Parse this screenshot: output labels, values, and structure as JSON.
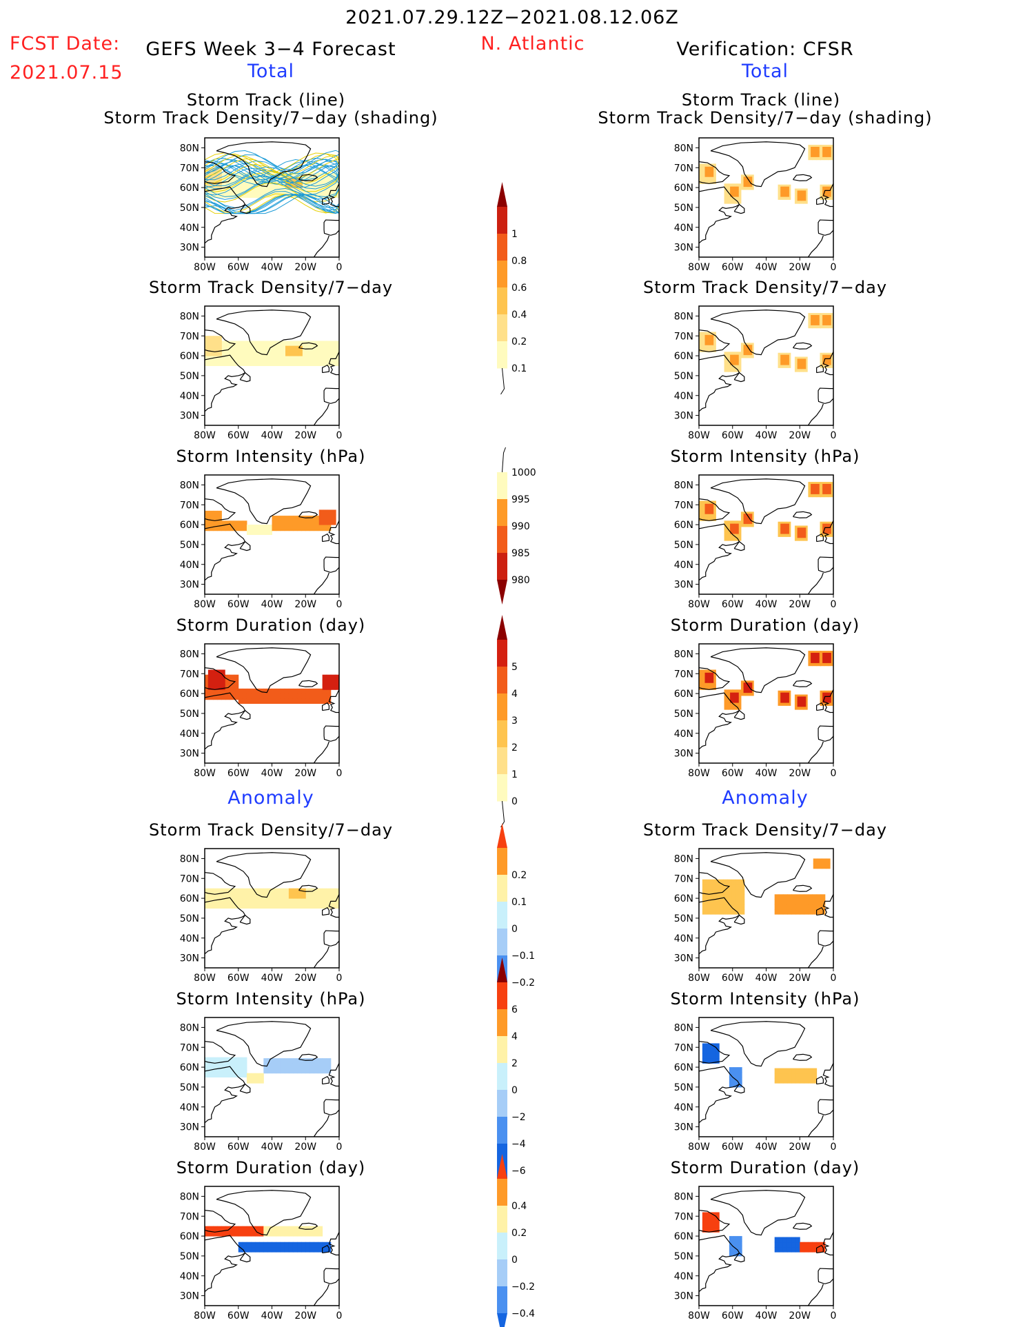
{
  "header": {
    "date_range": "2021.07.29.12Z−2021.08.12.06Z",
    "fcst_label": "FCST Date:",
    "fcst_date": "2021.07.15",
    "left_title": "GEFS Week 3−4 Forecast",
    "region": "N. Atlantic",
    "right_title": "Verification: CFSR",
    "total_label": "Total",
    "anomaly_label": "Anomaly"
  },
  "axes": {
    "lat_ticks": [
      "80N",
      "70N",
      "60N",
      "50N",
      "40N",
      "30N"
    ],
    "lon_ticks": [
      "80W",
      "60W",
      "40W",
      "20W",
      "0"
    ]
  },
  "panels": {
    "track_title_line1": "Storm Track (line)",
    "track_title_line2": "Storm Track Density/7−day (shading)",
    "density": "Storm Track Density/7−day",
    "intensity": "Storm Intensity (hPa)",
    "duration": "Storm Duration (day)"
  },
  "colorbars": {
    "density_total": [
      "1",
      "0.8",
      "0.6",
      "0.4",
      "0.2",
      "0.1"
    ],
    "intensity_total": [
      "1000",
      "995",
      "990",
      "985",
      "980"
    ],
    "duration_total": [
      "5",
      "4",
      "3",
      "2",
      "1",
      "0"
    ],
    "density_anom": [
      "0.2",
      "0.1",
      "0",
      "−0.1",
      "−0.2"
    ],
    "intensity_anom": [
      "6",
      "4",
      "2",
      "0",
      "−2",
      "−4",
      "−6"
    ],
    "duration_anom": [
      "0.4",
      "0.2",
      "0",
      "−0.2",
      "−0.4"
    ]
  },
  "colors": {
    "title_red": "#ff2020",
    "title_blue": "#1f3cff",
    "track_line": "#1a9ad6",
    "track_line2": "#e8d000"
  },
  "chart_data": [
    {
      "type": "heatmap",
      "title": "Storm Track Density/7-day (shading)",
      "source": "GEFS",
      "lon_range": [
        -80,
        0
      ],
      "lat_range": [
        25,
        85
      ],
      "scale": [
        0.1,
        0.2,
        0.4,
        0.6,
        0.8,
        1
      ],
      "note": "storm track lines overlaid"
    },
    {
      "type": "heatmap",
      "title": "Storm Track Density/7-day",
      "source": "CFSR",
      "lon_range": [
        -80,
        0
      ],
      "lat_range": [
        25,
        85
      ]
    },
    {
      "type": "heatmap",
      "title": "Storm Intensity (hPa)",
      "scale": [
        980,
        985,
        990,
        995,
        1000
      ]
    },
    {
      "type": "heatmap",
      "title": "Storm Duration (day)",
      "scale": [
        0,
        1,
        2,
        3,
        4,
        5
      ]
    },
    {
      "type": "heatmap",
      "title": "Anomaly Storm Track Density/7-day",
      "scale": [
        -0.2,
        -0.1,
        0,
        0.1,
        0.2
      ]
    },
    {
      "type": "heatmap",
      "title": "Anomaly Storm Intensity (hPa)",
      "scale": [
        -6,
        -4,
        -2,
        0,
        2,
        4,
        6
      ]
    },
    {
      "type": "heatmap",
      "title": "Anomaly Storm Duration (day)",
      "scale": [
        -0.4,
        -0.2,
        0,
        0.2,
        0.4
      ]
    }
  ]
}
